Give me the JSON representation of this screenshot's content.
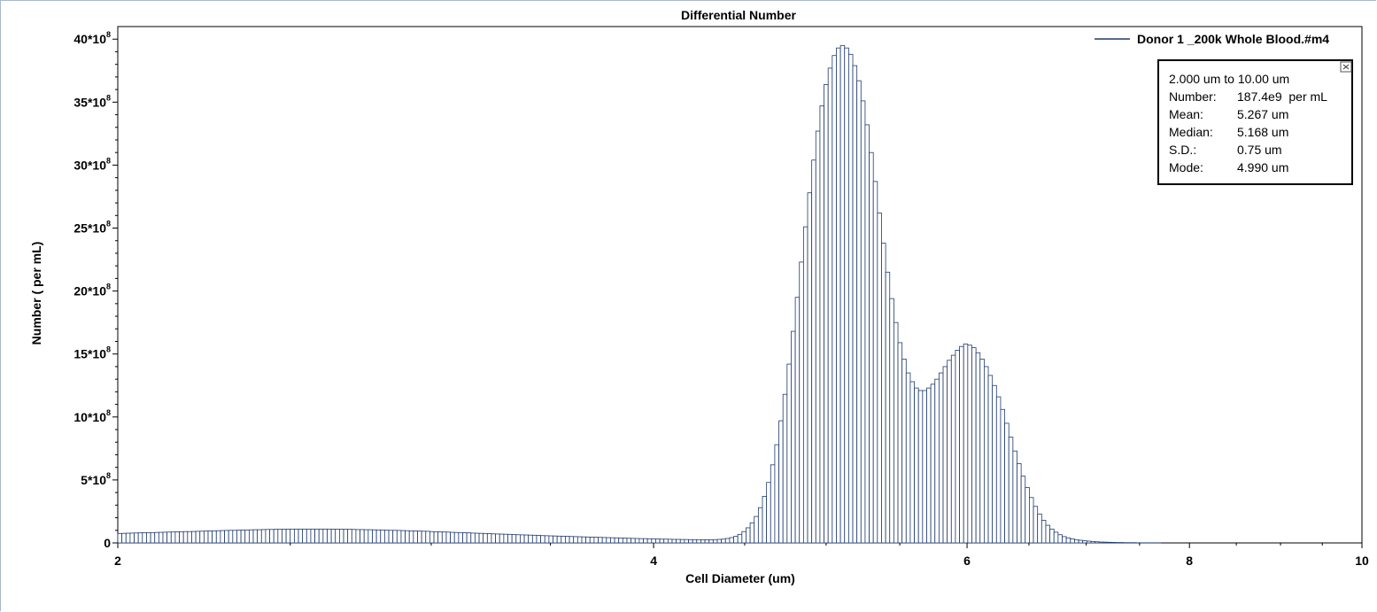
{
  "chart_data": {
    "type": "bar",
    "title": "Differential Number",
    "xlabel": "Cell Diameter (um)",
    "ylabel": "Number ( per mL)",
    "x_scale": "log",
    "xlim": [
      2,
      10
    ],
    "ylim": [
      0,
      4100000000.0
    ],
    "x_ticks": [
      2,
      4,
      6,
      8,
      10
    ],
    "y_ticks": [
      {
        "value": 0,
        "label": "0"
      },
      {
        "value": 500000000.0,
        "label": "5*10",
        "exp": "8"
      },
      {
        "value": 1000000000.0,
        "label": "10*10",
        "exp": "8"
      },
      {
        "value": 1500000000.0,
        "label": "15*10",
        "exp": "8"
      },
      {
        "value": 2000000000.0,
        "label": "20*10",
        "exp": "8"
      },
      {
        "value": 2500000000.0,
        "label": "25*10",
        "exp": "8"
      },
      {
        "value": 3000000000.0,
        "label": "30*10",
        "exp": "8"
      },
      {
        "value": 3500000000.0,
        "label": "35*10",
        "exp": "8"
      },
      {
        "value": 4000000000.0,
        "label": "40*10",
        "exp": "8"
      }
    ],
    "grid": false,
    "legend_position": "top-right",
    "series": [
      {
        "name": "Donor 1 _200k Whole Blood.#m4",
        "color": "#1f3a6e",
        "bin_count": 300,
        "description": "Histogram of cell diameter; x from 2 to 10 um; bins equally spaced on log scale",
        "values_e8": [
          0.75,
          0.76,
          0.77,
          0.78,
          0.79,
          0.8,
          0.81,
          0.82,
          0.82,
          0.83,
          0.84,
          0.85,
          0.86,
          0.87,
          0.88,
          0.89,
          0.9,
          0.9,
          0.91,
          0.92,
          0.93,
          0.94,
          0.95,
          0.96,
          0.97,
          0.98,
          0.99,
          1.0,
          1.0,
          1.01,
          1.02,
          1.03,
          1.04,
          1.05,
          1.05,
          1.06,
          1.07,
          1.07,
          1.08,
          1.08,
          1.09,
          1.09,
          1.1,
          1.1,
          1.1,
          1.1,
          1.1,
          1.1,
          1.1,
          1.1,
          1.1,
          1.1,
          1.09,
          1.09,
          1.09,
          1.08,
          1.08,
          1.07,
          1.06,
          1.06,
          1.05,
          1.05,
          1.04,
          1.03,
          1.02,
          1.01,
          1.0,
          1.0,
          0.99,
          0.98,
          0.97,
          0.96,
          0.95,
          0.94,
          0.93,
          0.92,
          0.9,
          0.89,
          0.88,
          0.87,
          0.86,
          0.84,
          0.83,
          0.82,
          0.81,
          0.8,
          0.78,
          0.77,
          0.76,
          0.75,
          0.74,
          0.72,
          0.71,
          0.7,
          0.69,
          0.68,
          0.66,
          0.65,
          0.64,
          0.63,
          0.62,
          0.61,
          0.6,
          0.58,
          0.57,
          0.56,
          0.55,
          0.54,
          0.53,
          0.52,
          0.51,
          0.5,
          0.49,
          0.48,
          0.47,
          0.46,
          0.45,
          0.44,
          0.43,
          0.42,
          0.41,
          0.4,
          0.39,
          0.38,
          0.37,
          0.36,
          0.35,
          0.34,
          0.34,
          0.33,
          0.32,
          0.31,
          0.3,
          0.3,
          0.29,
          0.28,
          0.28,
          0.27,
          0.27,
          0.26,
          0.26,
          0.26,
          0.25,
          0.25,
          0.25,
          0.26,
          0.28,
          0.3,
          0.35,
          0.42,
          0.52,
          0.68,
          0.9,
          1.2,
          1.6,
          2.1,
          2.8,
          3.7,
          4.8,
          6.2,
          7.8,
          9.7,
          11.8,
          14.2,
          16.8,
          19.5,
          22.3,
          25.1,
          27.8,
          30.4,
          32.7,
          34.7,
          36.4,
          37.7,
          38.7,
          39.3,
          39.5,
          39.3,
          38.8,
          37.9,
          36.7,
          35.1,
          33.2,
          31.0,
          28.7,
          26.2,
          23.8,
          21.5,
          19.4,
          17.5,
          15.9,
          14.6,
          13.5,
          12.8,
          12.3,
          12.1,
          12.1,
          12.3,
          12.6,
          13.0,
          13.5,
          14.0,
          14.5,
          14.9,
          15.3,
          15.6,
          15.8,
          15.7,
          15.5,
          15.1,
          14.6,
          14.0,
          13.3,
          12.5,
          11.6,
          10.6,
          9.5,
          8.4,
          7.3,
          6.3,
          5.3,
          4.4,
          3.6,
          2.9,
          2.3,
          1.8,
          1.4,
          1.1,
          0.85,
          0.65,
          0.5,
          0.4,
          0.32,
          0.26,
          0.21,
          0.17,
          0.14,
          0.11,
          0.09,
          0.07,
          0.06,
          0.05,
          0.04,
          0.03,
          0.03,
          0.02,
          0.02,
          0.02,
          0.01,
          0.01,
          0.01,
          0.01,
          0.01,
          0.01,
          0,
          0,
          0,
          0,
          0,
          0,
          0,
          0,
          0,
          0,
          0,
          0,
          0,
          0,
          0,
          0,
          0,
          0,
          0,
          0,
          0,
          0,
          0,
          0,
          0,
          0,
          0,
          0,
          0,
          0,
          0,
          0,
          0,
          0,
          0,
          0,
          0,
          0,
          0,
          0,
          0,
          0,
          0,
          0,
          0,
          0,
          0,
          0,
          0
        ]
      }
    ]
  },
  "stats_box": {
    "range_label": "2.000 um to 10.00 um",
    "rows": [
      {
        "label": "Number:",
        "value": "187.4e9  per mL"
      },
      {
        "label": "Mean:",
        "value": "5.267 um"
      },
      {
        "label": "Median:",
        "value": "5.168 um"
      },
      {
        "label": "S.D.:",
        "value": "0.75 um"
      },
      {
        "label": "Mode:",
        "value": "4.990 um"
      }
    ]
  }
}
